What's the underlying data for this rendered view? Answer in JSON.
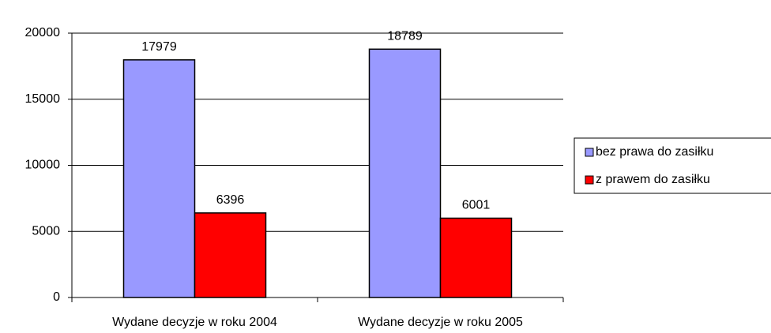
{
  "chart_data": {
    "type": "bar",
    "categories": [
      "Wydane decyzje w roku 2004",
      "Wydane decyzje w roku 2005"
    ],
    "series": [
      {
        "name": "bez prawa do zasiłku",
        "color": "#9999ff",
        "values": [
          17979,
          18789
        ]
      },
      {
        "name": "z prawem do zasiłku",
        "color": "#ff0000",
        "values": [
          6396,
          6001
        ]
      }
    ],
    "ylim": [
      0,
      20000
    ],
    "yticks": [
      0,
      5000,
      10000,
      15000,
      20000
    ],
    "grid": true,
    "legend": "right"
  }
}
